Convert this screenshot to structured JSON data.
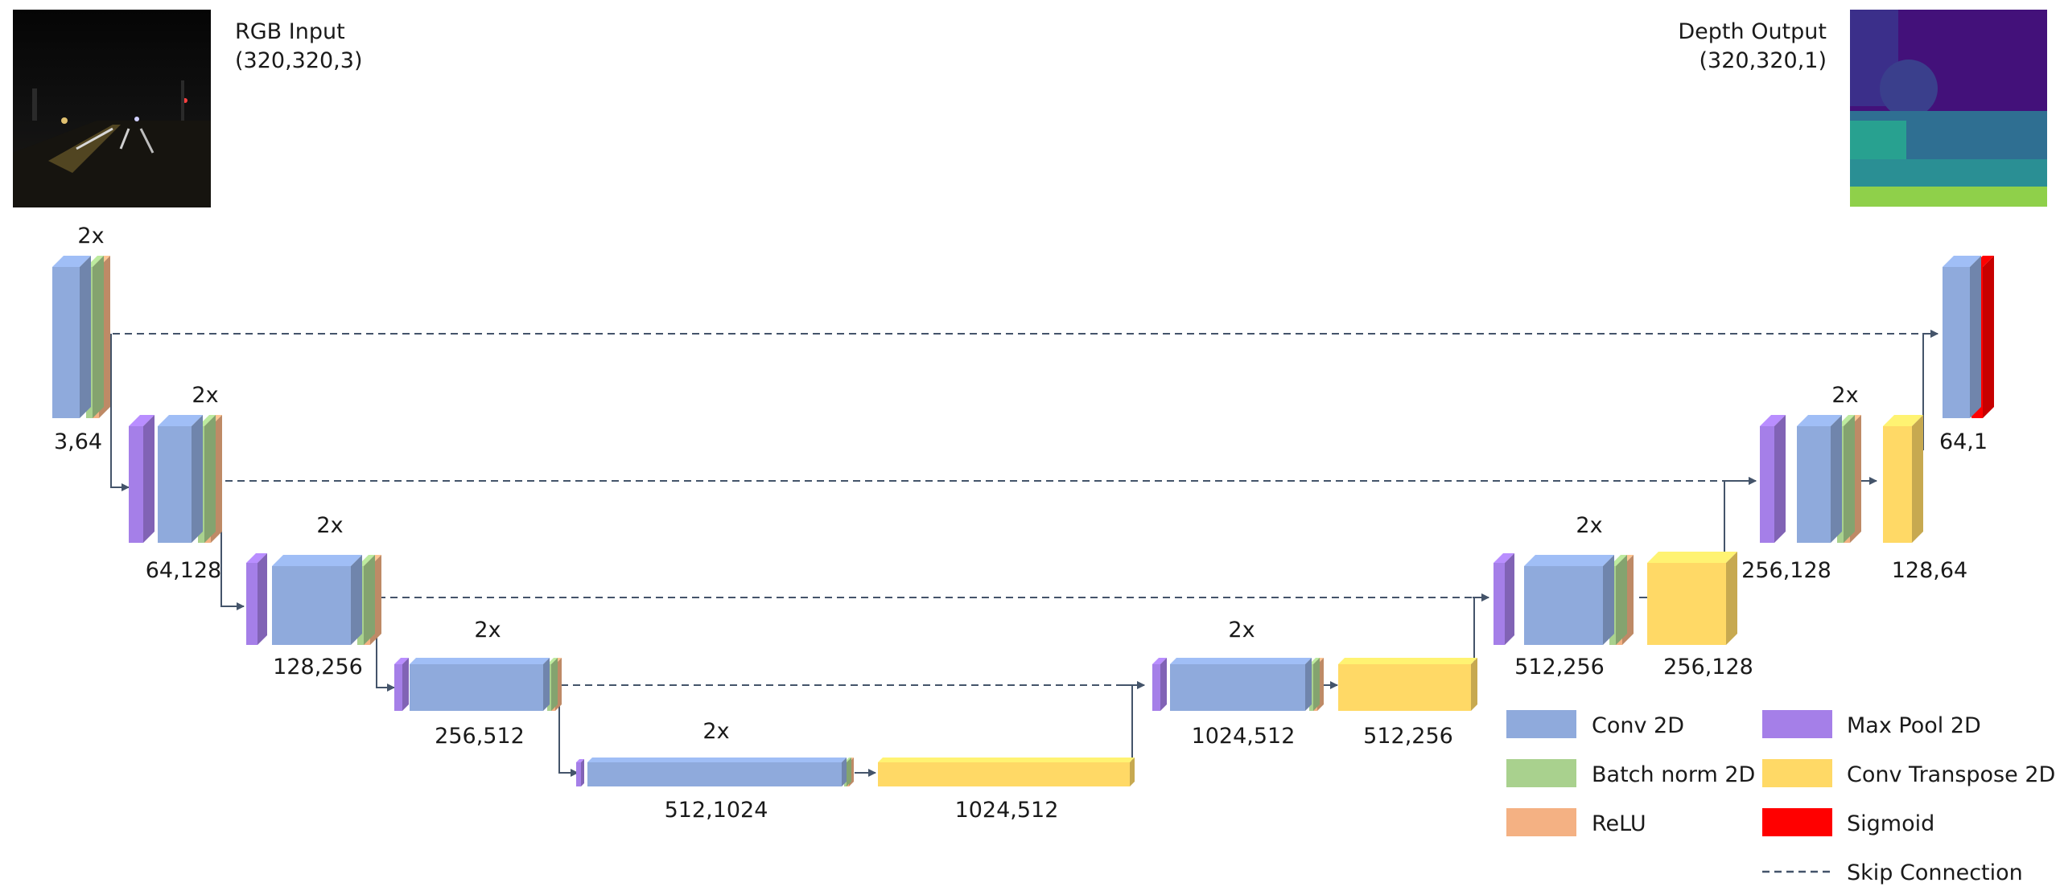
{
  "input": {
    "title": "RGB Input",
    "shape": "(320,320,3)"
  },
  "output": {
    "title": "Depth Output",
    "shape": "(320,320,1)"
  },
  "colors": {
    "conv": "#8faadc",
    "bn": "#a9d18e",
    "relu": "#f4b183",
    "pool": "#a57fe8",
    "convt": "#ffd966",
    "sigmoid": "#ff0000",
    "skip": "#44546a",
    "arrow": "#44546a"
  },
  "blocks": {
    "enc1": {
      "repeat": "2x",
      "channels": "3,64"
    },
    "enc2": {
      "repeat": "2x",
      "channels": "64,128"
    },
    "enc3": {
      "repeat": "2x",
      "channels": "128,256"
    },
    "enc4": {
      "repeat": "2x",
      "channels": "256,512"
    },
    "bottleneck": {
      "repeat": "2x",
      "channels": "512,1024"
    },
    "up1": {
      "channels": "1024,512"
    },
    "dec1": {
      "repeat": "2x",
      "channels": "1024,512"
    },
    "up2": {
      "channels": "512,256"
    },
    "dec2": {
      "repeat": "2x",
      "channels": "512,256"
    },
    "up3": {
      "channels": "256,128"
    },
    "dec3": {
      "repeat": "2x",
      "channels": "256,128"
    },
    "up4": {
      "channels": "128,64"
    },
    "final": {
      "channels": "64,1"
    }
  },
  "legend": [
    {
      "key": "conv",
      "label": "Conv 2D"
    },
    {
      "key": "bn",
      "label": "Batch norm 2D"
    },
    {
      "key": "relu",
      "label": "ReLU"
    },
    {
      "key": "pool",
      "label": "Max Pool 2D"
    },
    {
      "key": "convt",
      "label": "Conv Transpose 2D"
    },
    {
      "key": "sigmoid",
      "label": "Sigmoid"
    },
    {
      "key": "skip",
      "label": "Skip Connection"
    }
  ]
}
